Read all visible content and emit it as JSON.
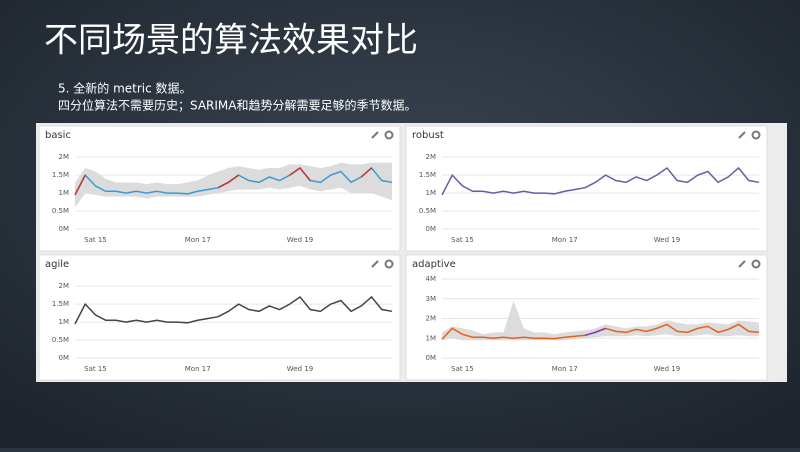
{
  "slide": {
    "title": "不同场景的算法效果对比",
    "lines": [
      "5. 全新的 metric 数据。",
      "四分位算法不需要历史；SARIMA和趋势分解需要足够的季节数据。"
    ]
  },
  "chart_data": [
    {
      "type": "line",
      "title": "basic",
      "categories": [
        null,
        null,
        "Sat 15",
        null,
        null,
        null,
        null,
        null,
        null,
        null,
        null,
        null,
        "Mon 17",
        null,
        null,
        null,
        null,
        null,
        null,
        null,
        null,
        null,
        "Wed 19",
        null,
        null,
        null,
        null,
        null,
        null,
        null,
        null,
        null
      ],
      "band": {
        "color": "#dcdcdc",
        "upper": [
          1.3,
          1.7,
          1.6,
          1.4,
          1.3,
          1.3,
          1.3,
          1.25,
          1.3,
          1.25,
          1.25,
          1.3,
          1.35,
          1.5,
          1.6,
          1.7,
          1.75,
          1.7,
          1.65,
          1.7,
          1.7,
          1.8,
          1.8,
          1.75,
          1.7,
          1.75,
          1.85,
          1.8,
          1.8,
          1.85,
          1.85,
          1.85
        ],
        "lower": [
          0.6,
          1.0,
          0.95,
          0.9,
          0.9,
          0.9,
          0.9,
          0.85,
          0.9,
          0.9,
          0.9,
          0.9,
          0.9,
          0.95,
          1.0,
          1.05,
          1.1,
          1.1,
          1.1,
          1.15,
          1.1,
          1.15,
          1.2,
          1.1,
          1.05,
          1.1,
          1.15,
          1.0,
          1.0,
          1.0,
          0.9,
          0.8
        ]
      },
      "series": [
        {
          "color": "#3a9bd5",
          "values": [
            0.95,
            1.5,
            1.2,
            1.05,
            1.05,
            1.0,
            1.05,
            1.0,
            1.05,
            1.0,
            1.0,
            0.98,
            1.05,
            1.1,
            1.15,
            1.3,
            1.5,
            1.35,
            1.3,
            1.45,
            1.35,
            1.5,
            1.7,
            1.35,
            1.3,
            1.5,
            1.6,
            1.3,
            1.45,
            1.7,
            1.35,
            1.3
          ]
        },
        {
          "color": "#c0392b",
          "values": [
            0.95,
            1.5,
            null,
            null,
            null,
            null,
            null,
            null,
            null,
            null,
            null,
            null,
            null,
            null,
            1.15,
            1.3,
            1.5,
            null,
            null,
            null,
            null,
            1.5,
            1.7,
            1.35,
            null,
            null,
            null,
            null,
            1.45,
            1.7,
            null,
            null
          ]
        }
      ],
      "ylim": [
        0,
        2.2
      ],
      "yticks": [
        {
          "value": 0,
          "label": "0M"
        },
        {
          "value": 0.5,
          "label": "0.5M"
        },
        {
          "value": 1,
          "label": "1M"
        },
        {
          "value": 1.5,
          "label": "1.5M"
        },
        {
          "value": 2,
          "label": "2M"
        }
      ]
    },
    {
      "type": "line",
      "title": "robust",
      "categories": [
        null,
        null,
        "Sat 15",
        null,
        null,
        null,
        null,
        null,
        null,
        null,
        null,
        null,
        "Mon 17",
        null,
        null,
        null,
        null,
        null,
        null,
        null,
        null,
        null,
        "Wed 19",
        null,
        null,
        null,
        null,
        null,
        null,
        null,
        null,
        null
      ],
      "series": [
        {
          "color": "#6b5ba8",
          "values": [
            0.95,
            1.5,
            1.2,
            1.05,
            1.05,
            1.0,
            1.05,
            1.0,
            1.05,
            1.0,
            1.0,
            0.98,
            1.05,
            1.1,
            1.15,
            1.3,
            1.5,
            1.35,
            1.3,
            1.45,
            1.35,
            1.5,
            1.7,
            1.35,
            1.3,
            1.5,
            1.6,
            1.3,
            1.45,
            1.7,
            1.35,
            1.3
          ]
        }
      ],
      "ylim": [
        0,
        2.2
      ],
      "yticks": [
        {
          "value": 0,
          "label": "0M"
        },
        {
          "value": 0.5,
          "label": "0.5M"
        },
        {
          "value": 1,
          "label": "1M"
        },
        {
          "value": 1.5,
          "label": "1.5M"
        },
        {
          "value": 2,
          "label": "2M"
        }
      ]
    },
    {
      "type": "line",
      "title": "agile",
      "categories": [
        null,
        null,
        "Sat 15",
        null,
        null,
        null,
        null,
        null,
        null,
        null,
        null,
        null,
        "Mon 17",
        null,
        null,
        null,
        null,
        null,
        null,
        null,
        null,
        null,
        "Wed 19",
        null,
        null,
        null,
        null,
        null,
        null,
        null,
        null,
        null
      ],
      "series": [
        {
          "color": "#444444",
          "values": [
            0.95,
            1.5,
            1.2,
            1.05,
            1.05,
            1.0,
            1.05,
            1.0,
            1.05,
            1.0,
            1.0,
            0.98,
            1.05,
            1.1,
            1.15,
            1.3,
            1.5,
            1.35,
            1.3,
            1.45,
            1.35,
            1.5,
            1.7,
            1.35,
            1.3,
            1.5,
            1.6,
            1.3,
            1.45,
            1.7,
            1.35,
            1.3
          ]
        }
      ],
      "ylim": [
        0,
        2.2
      ],
      "yticks": [
        {
          "value": 0,
          "label": "0M"
        },
        {
          "value": 0.5,
          "label": "0.5M"
        },
        {
          "value": 1,
          "label": "1M"
        },
        {
          "value": 1.5,
          "label": "1.5M"
        },
        {
          "value": 2,
          "label": "2M"
        }
      ]
    },
    {
      "type": "line",
      "title": "adaptive",
      "categories": [
        null,
        null,
        "Sat 15",
        null,
        null,
        null,
        null,
        null,
        null,
        null,
        null,
        null,
        "Mon 17",
        null,
        null,
        null,
        null,
        null,
        null,
        null,
        null,
        null,
        "Wed 19",
        null,
        null,
        null,
        null,
        null,
        null,
        null,
        null,
        null
      ],
      "band": {
        "color": "#dcdcdc",
        "upper": [
          1.3,
          1.6,
          1.5,
          1.4,
          1.2,
          1.3,
          1.3,
          2.9,
          1.5,
          1.3,
          1.3,
          1.2,
          1.3,
          1.35,
          1.4,
          1.5,
          1.7,
          1.6,
          1.5,
          1.6,
          1.6,
          1.7,
          1.9,
          1.8,
          1.7,
          1.7,
          1.8,
          1.75,
          1.7,
          1.9,
          1.85,
          1.8
        ],
        "lower": [
          0.9,
          1.0,
          0.9,
          0.9,
          0.9,
          0.9,
          0.9,
          0.9,
          0.9,
          0.9,
          0.9,
          0.9,
          0.9,
          0.95,
          1.0,
          1.05,
          1.1,
          1.1,
          1.1,
          1.15,
          1.1,
          1.15,
          1.2,
          1.1,
          1.1,
          1.15,
          1.2,
          1.1,
          1.1,
          1.15,
          1.1,
          1.1
        ]
      },
      "series": [
        {
          "color": "#e8601c",
          "values": [
            0.95,
            1.5,
            1.2,
            1.05,
            1.05,
            1.0,
            1.05,
            1.0,
            1.05,
            1.0,
            1.0,
            0.98,
            1.05,
            1.1,
            1.15,
            1.3,
            1.5,
            1.35,
            1.3,
            1.45,
            1.35,
            1.5,
            1.7,
            1.35,
            1.3,
            1.5,
            1.6,
            1.3,
            1.45,
            1.7,
            1.35,
            1.3
          ]
        },
        {
          "color": "#7b3fb5",
          "values": [
            null,
            null,
            null,
            null,
            null,
            null,
            null,
            null,
            null,
            null,
            null,
            null,
            null,
            null,
            1.15,
            1.3,
            1.5,
            null,
            null,
            null,
            null,
            null,
            null,
            null,
            null,
            null,
            null,
            null,
            null,
            null,
            null,
            null
          ]
        }
      ],
      "ylim": [
        0,
        4
      ],
      "yticks": [
        {
          "value": 0,
          "label": "0M"
        },
        {
          "value": 1,
          "label": "1M"
        },
        {
          "value": 2,
          "label": "2M"
        },
        {
          "value": 3,
          "label": "3M"
        },
        {
          "value": 4,
          "label": "4M"
        }
      ]
    }
  ]
}
